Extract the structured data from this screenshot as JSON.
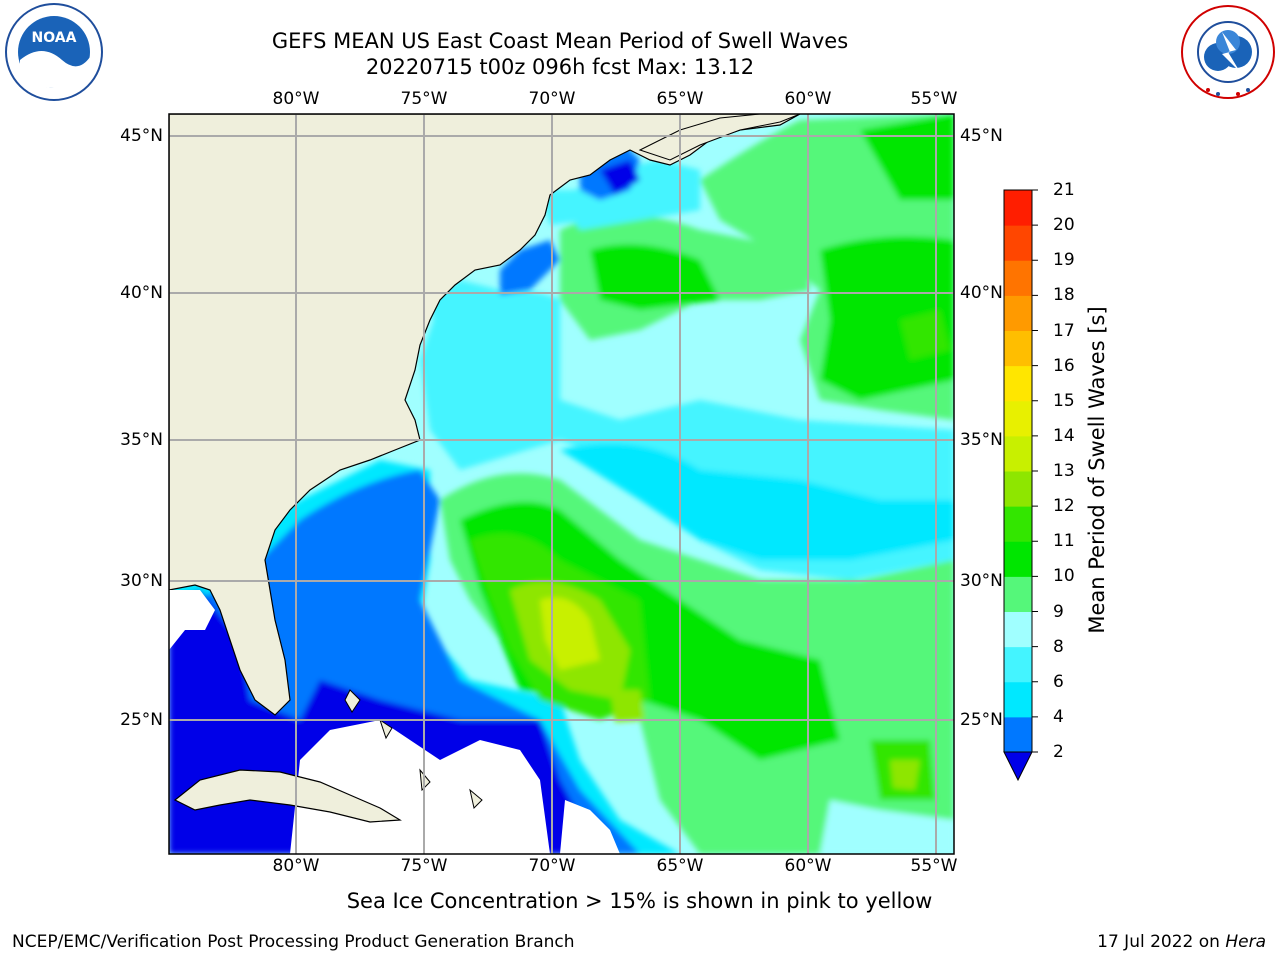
{
  "title_line1": "GEFS MEAN US East Coast Mean Period of Swell Waves",
  "title_line2": "20220715 t00z 096h fcst   Max: 13.12",
  "lon_labels": [
    "80°W",
    "75°W",
    "70°W",
    "65°W",
    "60°W",
    "55°W"
  ],
  "lat_labels": [
    "45°N",
    "40°N",
    "35°N",
    "30°N",
    "25°N"
  ],
  "colorbar": {
    "label": "Mean Period of Swell Waves [s]",
    "ticks": [
      "2",
      "4",
      "6",
      "8",
      "9",
      "10",
      "11",
      "12",
      "13",
      "14",
      "15",
      "16",
      "17",
      "18",
      "19",
      "20",
      "21"
    ],
    "colors": [
      "#0000e8",
      "#0078ff",
      "#00e8ff",
      "#44f4ff",
      "#a0ffff",
      "#55f77a",
      "#00e600",
      "#33e600",
      "#8ee600",
      "#c8f000",
      "#e8f000",
      "#ffe600",
      "#ffbe00",
      "#ff9a00",
      "#ff7400",
      "#ff4600",
      "#ff1e00",
      "#ff0000"
    ]
  },
  "note": "Sea Ice Concentration > 15% is shown in pink to yellow",
  "footer_left": "NCEP/EMC/Verification Post Processing Product Generation Branch",
  "footer_right_date": "17 Jul 2022 on",
  "footer_right_host": "Hera",
  "logos": {
    "left": "NOAA",
    "left_ring": "NATIONAL OCEANIC AND ATMOSPHERIC ADMINISTRATION · U.S. DEPARTMENT OF COMMERCE",
    "right_ring": "NATIONAL WEATHER SERVICE"
  }
}
